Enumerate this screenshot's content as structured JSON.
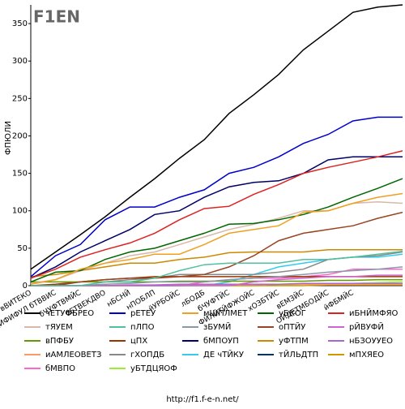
{
  "logo": "F1EN",
  "footer": "http://f1.f-e-n.net/",
  "chart_data": {
    "type": "line",
    "y_label": "ФПЮЛИ",
    "categories": [
      "вВИТЕКО",
      "ВЕДЙФИФУЛ бТВВИС",
      "бЧУФТВМЙС",
      "бЕТВЕКДВО",
      "нБСНЙ",
      "нПОБЛП",
      "йУРБОЙС",
      "лБОДБ",
      "бЧУФТЙС",
      "ФЙЛЙТЙФЖОЙС",
      "хОЗБТЙС",
      "вЕМЗЙС",
      "ОЙДЕТМБОДЙС",
      "йФБМЙС",
      null,
      null
    ],
    "ylim": [
      0,
      375
    ],
    "yticks": [
      0,
      50,
      100,
      150,
      200,
      250,
      300,
      350
    ],
    "grid": false,
    "series": [
      {
        "name": "чЕТУФБРЕО",
        "color": "#000000",
        "values": [
          22,
          45,
          68,
          92,
          118,
          143,
          170,
          195,
          230,
          255,
          282,
          315,
          340,
          365,
          372,
          375
        ]
      },
      {
        "name": "рЕТЕУ",
        "color": "#0000cc",
        "values": [
          12,
          40,
          55,
          88,
          105,
          105,
          118,
          128,
          150,
          158,
          172,
          190,
          202,
          220,
          225,
          225
        ]
      },
      {
        "name": "мШПЛМЕТ",
        "color": "#f0a020",
        "values": [
          2,
          8,
          22,
          30,
          35,
          42,
          42,
          55,
          70,
          75,
          80,
          98,
          100,
          110,
          118,
          123
        ]
      },
      {
        "name": "уБКОГ",
        "color": "#006600",
        "values": [
          5,
          18,
          20,
          35,
          45,
          50,
          60,
          70,
          82,
          83,
          88,
          95,
          105,
          118,
          130,
          143
        ]
      },
      {
        "name": "иБНЙМФЯО",
        "color": "#dd2222",
        "values": [
          10,
          22,
          38,
          48,
          57,
          70,
          88,
          103,
          106,
          122,
          135,
          150,
          158,
          165,
          172,
          180
        ]
      },
      {
        "name": "тЯУЕМ",
        "color": "#d8b8a8",
        "values": [
          3,
          8,
          20,
          30,
          40,
          45,
          55,
          65,
          75,
          82,
          90,
          100,
          100,
          110,
          112,
          110
        ]
      },
      {
        "name": "пЛПО",
        "color": "#50c0a0",
        "values": [
          0,
          0,
          0,
          5,
          5,
          10,
          20,
          28,
          30,
          30,
          30,
          35,
          35,
          38,
          42,
          46
        ]
      },
      {
        "name": "зБУМЙ",
        "color": "#8899aa",
        "values": [
          0,
          0,
          0,
          2,
          3,
          5,
          5,
          5,
          8,
          10,
          12,
          15,
          18,
          20,
          22,
          25
        ]
      },
      {
        "name": "оПТЙУ",
        "color": "#994422",
        "values": [
          0,
          0,
          5,
          8,
          10,
          10,
          12,
          15,
          25,
          40,
          60,
          70,
          75,
          80,
          90,
          98
        ]
      },
      {
        "name": "рЙВУФЙ",
        "color": "#cc66cc",
        "values": [
          0,
          0,
          0,
          0,
          0,
          0,
          0,
          0,
          0,
          5,
          8,
          10,
          12,
          12,
          14,
          14
        ]
      },
      {
        "name": "вПФБУ",
        "color": "#669900",
        "values": [
          5,
          5,
          5,
          5,
          5,
          5,
          6,
          6,
          6,
          6,
          6,
          6,
          7,
          7,
          8,
          8
        ]
      },
      {
        "name": "цПХ",
        "color": "#993300",
        "values": [
          0,
          2,
          5,
          8,
          10,
          12,
          12,
          12,
          12,
          12,
          12,
          12,
          12,
          12,
          12,
          12
        ]
      },
      {
        "name": "бМПОУП",
        "color": "#000066",
        "values": [
          10,
          25,
          45,
          60,
          75,
          95,
          100,
          118,
          132,
          138,
          140,
          150,
          168,
          172,
          172,
          172
        ]
      },
      {
        "name": "уФТПМ",
        "color": "#cc8800",
        "values": [
          12,
          15,
          20,
          25,
          30,
          30,
          35,
          38,
          44,
          45,
          45,
          45,
          48,
          48,
          48,
          48
        ]
      },
      {
        "name": "нБЗОУУЕО",
        "color": "#aa66cc",
        "values": [
          0,
          0,
          0,
          0,
          1,
          1,
          2,
          2,
          2,
          2,
          2,
          3,
          3,
          3,
          3,
          3
        ]
      },
      {
        "name": "иАМЛЕОВЕТЗ",
        "color": "#ff9966",
        "values": [
          0,
          0,
          0,
          0,
          0,
          1,
          1,
          1,
          1,
          1,
          2,
          2,
          2,
          2,
          2,
          2
        ]
      },
      {
        "name": "гХОПДБ",
        "color": "#888888",
        "values": [
          0,
          0,
          0,
          5,
          8,
          10,
          15,
          15,
          15,
          15,
          18,
          22,
          35,
          38,
          40,
          45
        ]
      },
      {
        "name": "ДЕ чТЙКУ",
        "color": "#33ccee",
        "values": [
          0,
          0,
          0,
          0,
          0,
          0,
          0,
          0,
          5,
          15,
          25,
          30,
          35,
          38,
          38,
          42
        ]
      },
      {
        "name": "тЙЛЬДТП",
        "color": "#003366",
        "values": [
          0,
          0,
          0,
          0,
          0,
          0,
          0,
          1,
          1,
          1,
          2,
          2,
          2,
          3,
          3,
          3
        ]
      },
      {
        "name": "мПХЯЕО",
        "color": "#cc9900",
        "values": [
          0,
          0,
          0,
          0,
          0,
          0,
          0,
          0,
          0,
          0,
          0,
          0,
          1,
          1,
          1,
          1
        ]
      },
      {
        "name": "бМВПО",
        "color": "#ff66cc",
        "values": [
          0,
          0,
          0,
          0,
          0,
          0,
          0,
          5,
          8,
          10,
          10,
          12,
          15,
          22,
          22,
          22
        ]
      },
      {
        "name": "уБТДЦЯОФ",
        "color": "#99ee33",
        "values": [
          0,
          0,
          0,
          0,
          0,
          0,
          0,
          0,
          0,
          0,
          1,
          2,
          2,
          3,
          4,
          5
        ]
      }
    ]
  }
}
